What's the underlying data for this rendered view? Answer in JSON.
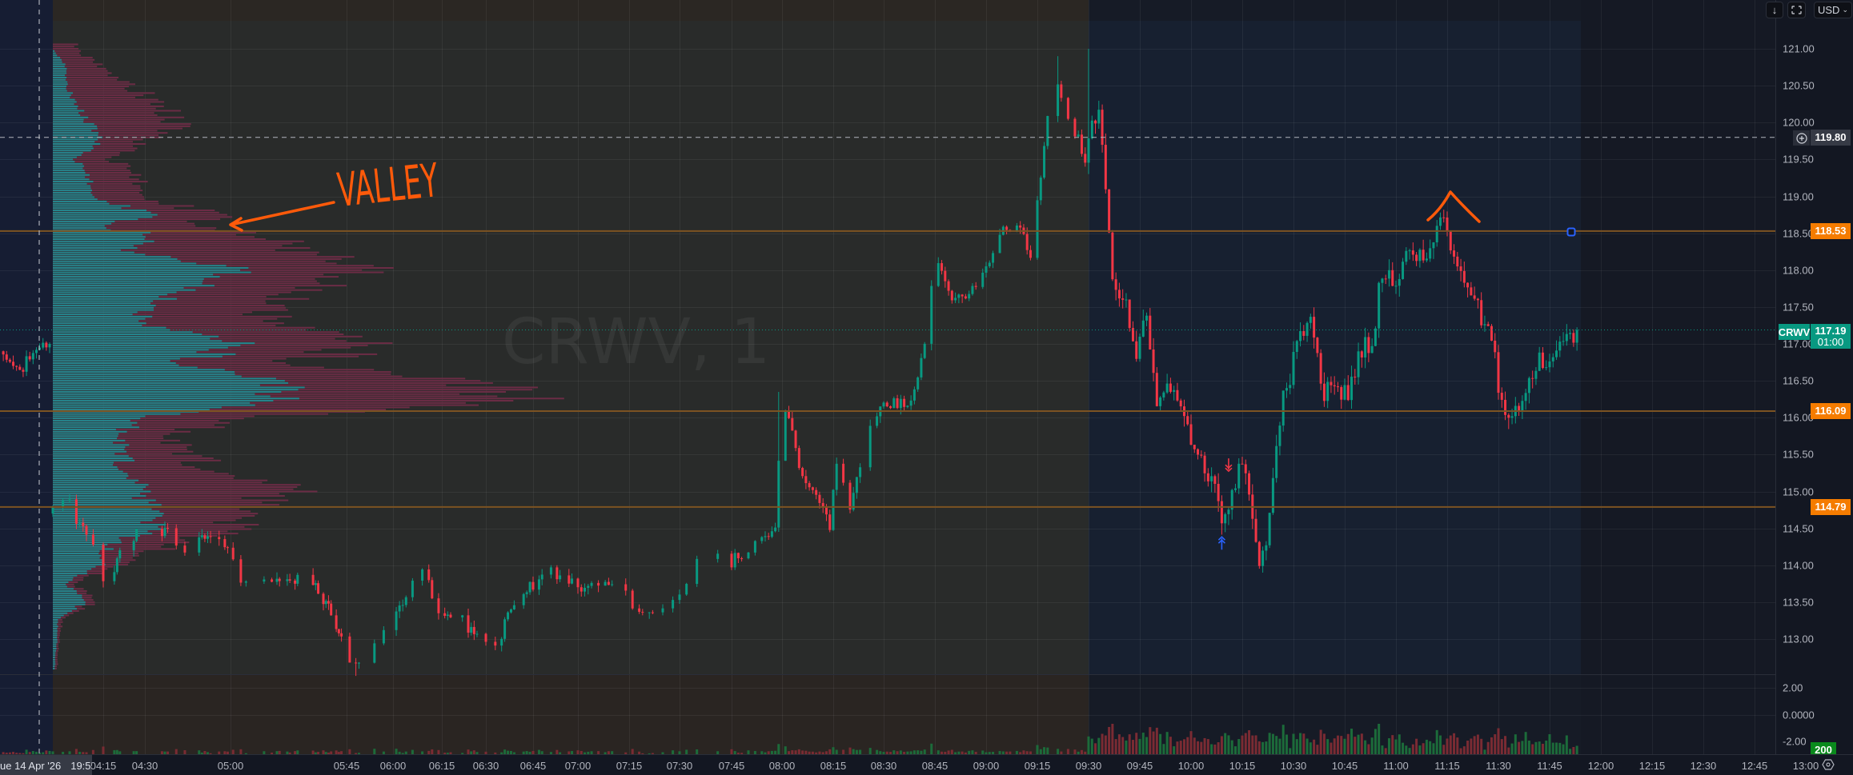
{
  "toolbar": {
    "scroll_icon": "arrow-down-icon",
    "fullscreen_icon": "frame-icon",
    "currency": "USD"
  },
  "watermark": "CRWV, 1",
  "date_label": {
    "date": "ue 14 Apr '26",
    "time": "19:55"
  },
  "annotations": {
    "valley_text": "VALLEY",
    "color": "#ff5a0a"
  },
  "colors": {
    "up": "#089981",
    "down": "#f23645",
    "level": "#f57c00",
    "profile_up": "#25858d",
    "profile_down": "#6b2c45"
  },
  "chart_data": {
    "type": "candlestick",
    "symbol": "CRWV",
    "interval": "1",
    "price_axis": {
      "ticks": [
        "121.00",
        "120.50",
        "120.00",
        "119.50",
        "119.00",
        "118.50",
        "118.00",
        "117.50",
        "117.00",
        "116.50",
        "116.00",
        "115.50",
        "115.00",
        "114.50",
        "114.00",
        "113.50",
        "113.00"
      ],
      "range": [
        112.5,
        121.3
      ]
    },
    "time_ticks": [
      "04:15",
      "04:30",
      "05:00",
      "05:45",
      "06:00",
      "06:15",
      "06:30",
      "06:45",
      "07:00",
      "07:15",
      "07:30",
      "07:45",
      "08:00",
      "08:15",
      "08:30",
      "08:45",
      "09:00",
      "09:15",
      "09:30",
      "09:45",
      "10:00",
      "10:15",
      "10:30",
      "10:45",
      "11:00",
      "11:15",
      "11:30",
      "11:45",
      "12:00",
      "12:15",
      "12:30",
      "12:45",
      "13:00"
    ],
    "close_path": [
      [
        "19:45",
        116.9
      ],
      [
        "19:50",
        116.65
      ],
      [
        "19:55",
        116.9
      ],
      [
        "19:59",
        117.0
      ],
      [
        "04:00",
        114.7
      ],
      [
        "04:04",
        115.0
      ],
      [
        "04:07",
        114.6
      ],
      [
        "04:12",
        114.3
      ],
      [
        "04:14",
        113.8
      ],
      [
        "04:18",
        113.9
      ],
      [
        "04:24",
        114.4
      ],
      [
        "04:35",
        114.5
      ],
      [
        "04:44",
        114.2
      ],
      [
        "04:54",
        114.4
      ],
      [
        "05:00",
        114.2
      ],
      [
        "05:04",
        113.8
      ],
      [
        "05:10",
        113.7
      ],
      [
        "05:19",
        113.8
      ],
      [
        "05:29",
        113.8
      ],
      [
        "05:35",
        113.6
      ],
      [
        "05:39",
        113.4
      ],
      [
        "05:44",
        112.9
      ],
      [
        "05:48",
        112.6
      ],
      [
        "05:54",
        113.0
      ],
      [
        "06:00",
        113.3
      ],
      [
        "06:10",
        114.0
      ],
      [
        "06:13",
        113.4
      ],
      [
        "06:20",
        113.3
      ],
      [
        "06:25",
        113.1
      ],
      [
        "06:34",
        112.8
      ],
      [
        "06:37",
        113.4
      ],
      [
        "06:43",
        113.6
      ],
      [
        "06:50",
        114.0
      ],
      [
        "07:00",
        113.66
      ],
      [
        "07:10",
        113.8
      ],
      [
        "07:20",
        113.3
      ],
      [
        "07:30",
        113.5
      ],
      [
        "07:38",
        114.35
      ],
      [
        "07:45",
        114.05
      ],
      [
        "07:52",
        114.3
      ],
      [
        "07:58",
        114.5
      ],
      [
        "08:00",
        116.3
      ],
      [
        "08:03",
        115.8
      ],
      [
        "08:06",
        115.2
      ],
      [
        "08:10",
        114.95
      ],
      [
        "08:14",
        114.6
      ],
      [
        "08:16",
        115.4
      ],
      [
        "08:20",
        114.8
      ],
      [
        "08:25",
        115.75
      ],
      [
        "08:30",
        116.2
      ],
      [
        "08:38",
        116.2
      ],
      [
        "08:42",
        117.0
      ],
      [
        "08:45",
        118.2
      ],
      [
        "08:50",
        117.6
      ],
      [
        "08:55",
        117.7
      ],
      [
        "09:00",
        118.0
      ],
      [
        "09:05",
        118.5
      ],
      [
        "09:10",
        118.6
      ],
      [
        "09:13",
        118.2
      ],
      [
        "09:17",
        119.75
      ],
      [
        "09:20",
        120.7
      ],
      [
        "09:23",
        120.2
      ],
      [
        "09:26",
        119.9
      ],
      [
        "09:29",
        119.5
      ],
      [
        "09:30",
        119.6
      ],
      [
        "09:33",
        120.2
      ],
      [
        "09:37",
        117.9
      ],
      [
        "09:41",
        117.5
      ],
      [
        "09:44",
        116.85
      ],
      [
        "09:47",
        117.5
      ],
      [
        "09:50",
        116.1
      ],
      [
        "09:54",
        116.5
      ],
      [
        "09:58",
        116.0
      ],
      [
        "10:02",
        115.5
      ],
      [
        "10:07",
        115.1
      ],
      [
        "10:09",
        114.6
      ],
      [
        "10:12",
        115.0
      ],
      [
        "10:15",
        115.4
      ],
      [
        "10:20",
        114.1
      ],
      [
        "10:22",
        114.3
      ],
      [
        "10:25",
        115.5
      ],
      [
        "10:28",
        116.5
      ],
      [
        "10:35",
        117.45
      ],
      [
        "10:39",
        116.3
      ],
      [
        "10:43",
        116.5
      ],
      [
        "10:46",
        116.15
      ],
      [
        "10:49",
        116.8
      ],
      [
        "10:54",
        117.15
      ],
      [
        "10:55",
        117.95
      ],
      [
        "11:00",
        117.8
      ],
      [
        "11:04",
        118.35
      ],
      [
        "11:08",
        118.15
      ],
      [
        "11:13",
        118.6
      ],
      [
        "11:14",
        118.7
      ],
      [
        "11:16",
        118.3
      ],
      [
        "11:21",
        117.8
      ],
      [
        "11:24",
        117.4
      ],
      [
        "11:28",
        117.05
      ],
      [
        "11:30",
        116.45
      ],
      [
        "11:32",
        116.1
      ],
      [
        "11:36",
        116.15
      ],
      [
        "11:42",
        116.85
      ],
      [
        "11:45",
        116.7
      ],
      [
        "11:48",
        117.05
      ],
      [
        "11:53",
        117.19
      ]
    ],
    "extremes": [
      {
        "time": "09:30",
        "high": 121.0
      },
      {
        "time": "09:20",
        "high": 120.9
      },
      {
        "time": "10:21",
        "low": 113.9
      },
      {
        "time": "11:14",
        "high": 118.78
      },
      {
        "time": "05:48",
        "low": 112.5
      },
      {
        "time": "08:00",
        "high": 116.35
      }
    ],
    "levels": [
      {
        "price": 118.53,
        "label": "118.53"
      },
      {
        "price": 116.09,
        "label": "116.09"
      },
      {
        "price": 114.79,
        "label": "114.79"
      }
    ],
    "alert_line": {
      "price": 119.8,
      "label": "119.80"
    },
    "last_price": {
      "price": 117.19,
      "label": "117.19",
      "countdown": "01:00",
      "symbol": "CRWV"
    },
    "markers": [
      {
        "type": "sell-arrow",
        "time": "10:11",
        "price": 115.34
      },
      {
        "type": "buy-arrow",
        "time": "10:09",
        "price": 114.32
      }
    ],
    "volume_profile": [
      [
        121.0,
        5,
        0
      ],
      [
        120.75,
        11,
        3
      ],
      [
        120.5,
        17,
        3
      ],
      [
        120.25,
        23,
        5
      ],
      [
        120.0,
        28,
        8
      ],
      [
        119.75,
        19,
        10
      ],
      [
        119.5,
        13,
        5
      ],
      [
        119.25,
        19,
        8
      ],
      [
        119.0,
        18,
        8
      ],
      [
        118.75,
        35,
        21
      ],
      [
        118.6,
        33,
        12
      ],
      [
        118.55,
        30,
        9
      ],
      [
        118.5,
        45,
        23
      ],
      [
        118.25,
        55,
        16
      ],
      [
        118.0,
        66,
        40
      ],
      [
        117.75,
        54,
        29
      ],
      [
        117.5,
        46,
        20
      ],
      [
        117.25,
        50,
        20
      ],
      [
        117.0,
        70,
        42
      ],
      [
        116.75,
        55,
        29
      ],
      [
        116.5,
        94,
        51
      ],
      [
        116.25,
        98,
        47
      ],
      [
        116.0,
        44,
        20
      ],
      [
        115.75,
        22,
        13
      ],
      [
        115.5,
        31,
        16
      ],
      [
        115.25,
        35,
        15
      ],
      [
        115.0,
        54,
        20
      ],
      [
        114.75,
        39,
        21
      ],
      [
        114.5,
        40,
        22
      ],
      [
        114.25,
        25,
        12
      ],
      [
        114.0,
        14,
        10
      ],
      [
        113.75,
        5,
        3
      ],
      [
        113.5,
        9,
        7
      ],
      [
        113.25,
        2,
        1
      ],
      [
        113.0,
        1.5,
        1
      ],
      [
        112.75,
        1,
        0.5
      ],
      [
        112.6,
        1,
        0.5
      ]
    ],
    "indicator_axis": [
      "2.00",
      "0.0000",
      "-2.00"
    ],
    "volume_label": "200"
  }
}
